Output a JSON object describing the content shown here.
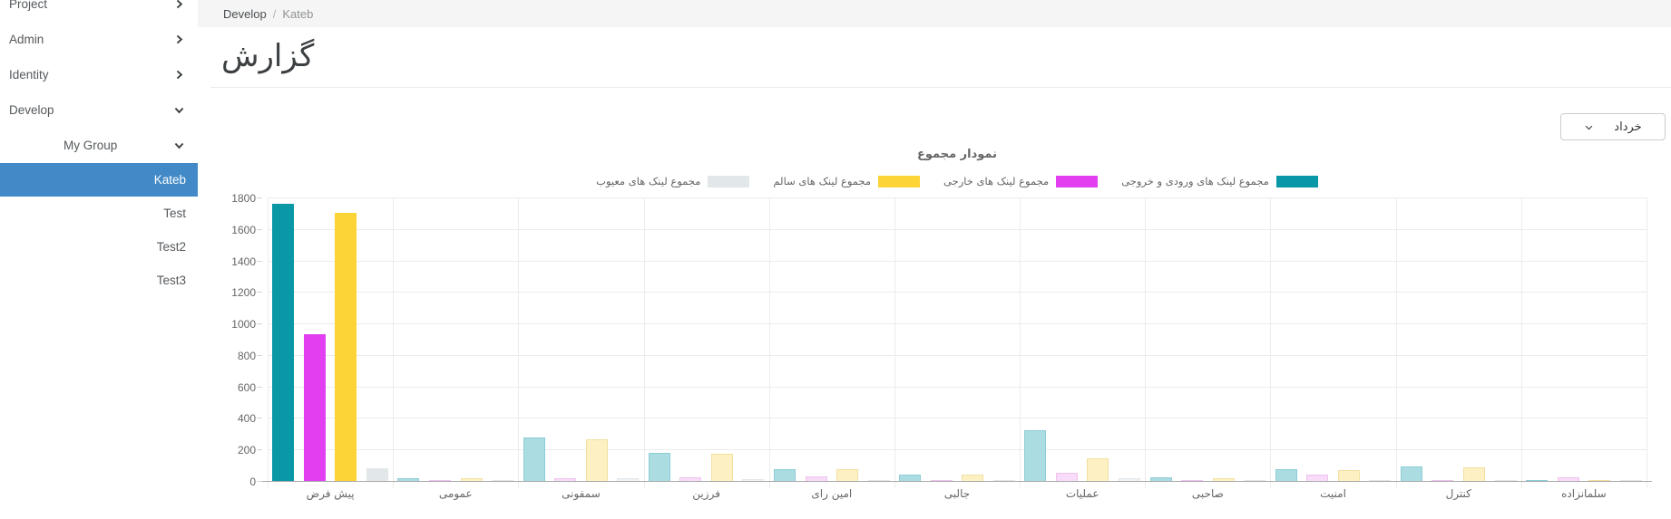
{
  "sidebar": {
    "items": [
      {
        "label": "Project",
        "chevron": "right"
      },
      {
        "label": "Admin",
        "chevron": "right"
      },
      {
        "label": "Identity",
        "chevron": "right"
      },
      {
        "label": "Develop",
        "chevron": "down"
      }
    ],
    "group": {
      "label": "My Group",
      "chevron": "down"
    },
    "sub_items": [
      {
        "label": "Kateb",
        "active": true
      },
      {
        "label": "Test",
        "active": false
      },
      {
        "label": "Test2",
        "active": false
      },
      {
        "label": "Test3",
        "active": false
      }
    ],
    "active_color": "#4189c7"
  },
  "breadcrumb": {
    "section": "Develop",
    "separator": "/",
    "current": "Kateb"
  },
  "page": {
    "title": "گزارش"
  },
  "filter": {
    "selected_month": "خرداد"
  },
  "chart_data": {
    "type": "bar",
    "title": "نمودار مجموع",
    "xlabel": "",
    "ylabel": "",
    "ylim": [
      0,
      1800
    ],
    "ytick_step": 200,
    "grid": true,
    "legend_position": "top",
    "direction": "rtl",
    "categories": [
      "پیش فرض",
      "عمومی",
      "سمفونی",
      "فرزین",
      "امین رای",
      "جالبی",
      "عملیات",
      "صاحبی",
      "امنیت",
      "کنترل",
      "سلمانزاده"
    ],
    "highlight_category": "پیش فرض",
    "series": [
      {
        "name": "مجموع لینک های ورودی و خروجی",
        "color": "#0a98a7",
        "muted_fill": "#abdce2",
        "muted_border": "#8ccdd5",
        "values": [
          1760,
          20,
          275,
          180,
          75,
          40,
          320,
          25,
          75,
          90,
          3
        ]
      },
      {
        "name": "مجموع لینک های خارجی",
        "color": "#e23ff0",
        "muted_fill": "#f8dbf8",
        "muted_border": "#efc2ee",
        "values": [
          930,
          5,
          15,
          25,
          30,
          5,
          50,
          3,
          40,
          3,
          25
        ]
      },
      {
        "name": "مجموع لینک های سالم",
        "color": "#fcd435",
        "muted_fill": "#fdf1c3",
        "muted_border": "#f1dfa0",
        "values": [
          1700,
          20,
          265,
          170,
          75,
          40,
          145,
          18,
          70,
          85,
          3
        ]
      },
      {
        "name": "مجموع لینک های معیوب",
        "color": "#e2e7ea",
        "muted_fill": "#eff2f4",
        "muted_border": "#e2e6e9",
        "values": [
          80,
          5,
          15,
          10,
          8,
          8,
          18,
          3,
          5,
          5,
          3
        ]
      }
    ]
  }
}
